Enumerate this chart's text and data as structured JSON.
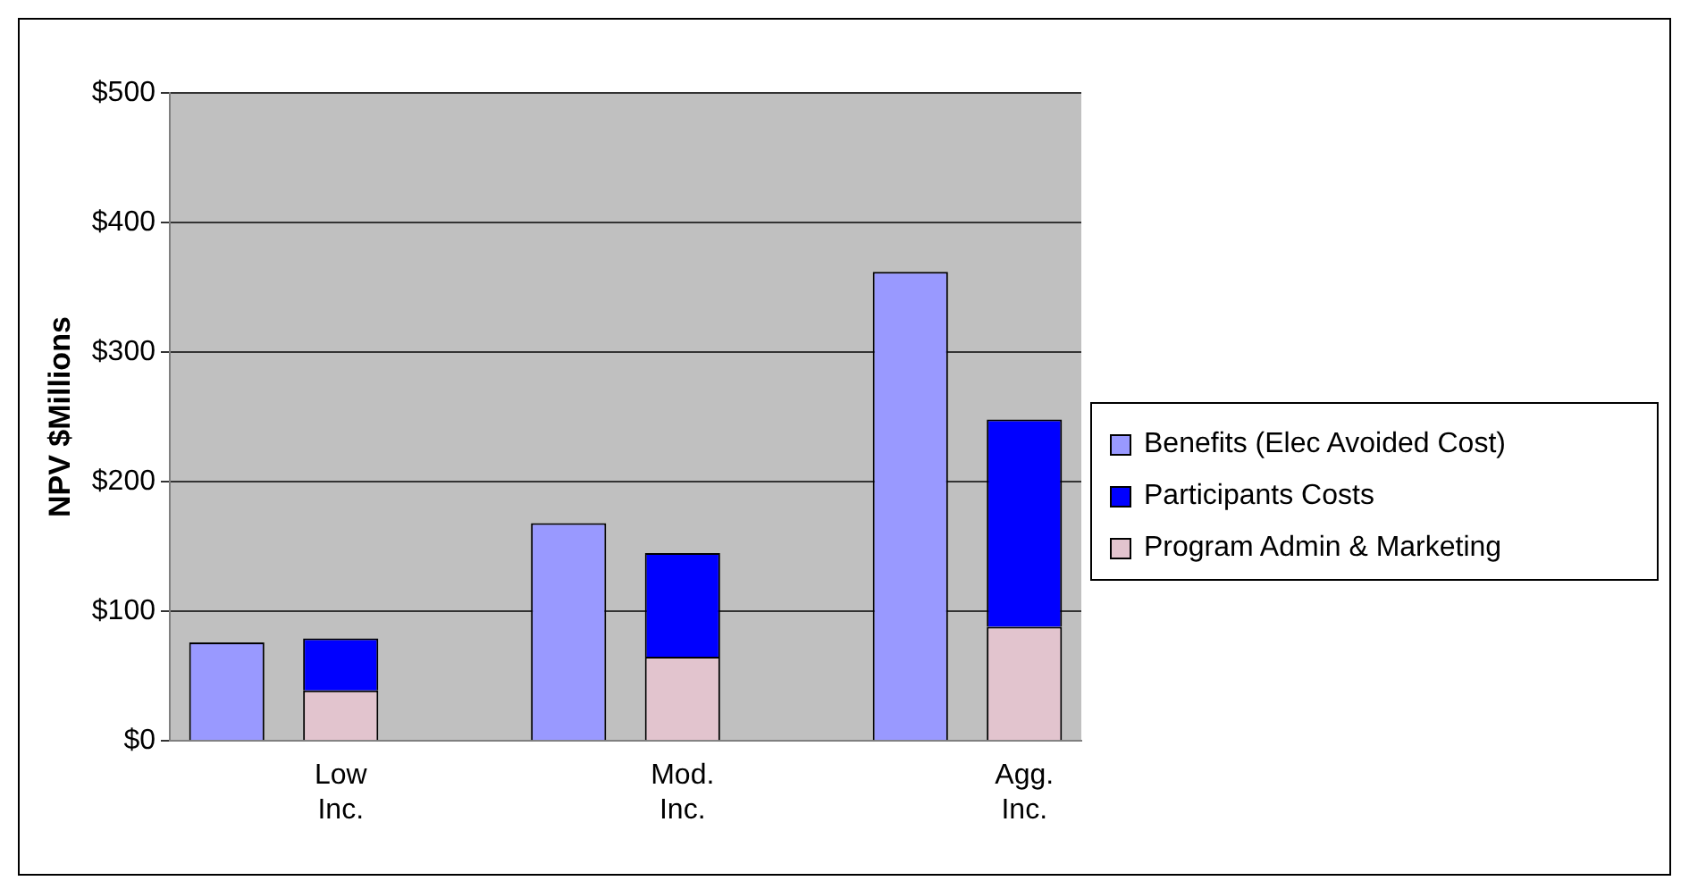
{
  "chart_data": {
    "type": "bar",
    "ylabel": "NPV $Millions",
    "categories": [
      null,
      "Low Inc.",
      null,
      null,
      "Mod. Inc.",
      null,
      null,
      "Agg. Inc."
    ],
    "stacked": true,
    "legend": "right",
    "grid": "y",
    "ylim": [
      0,
      500
    ],
    "yticks": [
      {
        "value": 0,
        "label": "$0"
      },
      {
        "value": 100,
        "label": "$100"
      },
      {
        "value": 200,
        "label": "$200"
      },
      {
        "value": 300,
        "label": "$300"
      },
      {
        "value": 400,
        "label": "$400"
      },
      {
        "value": 500,
        "label": "$500"
      }
    ],
    "series": [
      {
        "name": "Program Admin & Marketing",
        "color": "#e2c4ce",
        "values": [
          null,
          39,
          null,
          null,
          65,
          null,
          null,
          88
        ]
      },
      {
        "name": "Participants Costs",
        "color": "#0000ff",
        "values": [
          null,
          40,
          null,
          null,
          80,
          null,
          null,
          160
        ]
      },
      {
        "name": "Benefits (Elec Avoided Cost)",
        "color": "#9999ff",
        "values": [
          76,
          null,
          null,
          168,
          null,
          null,
          362,
          null
        ]
      }
    ]
  }
}
